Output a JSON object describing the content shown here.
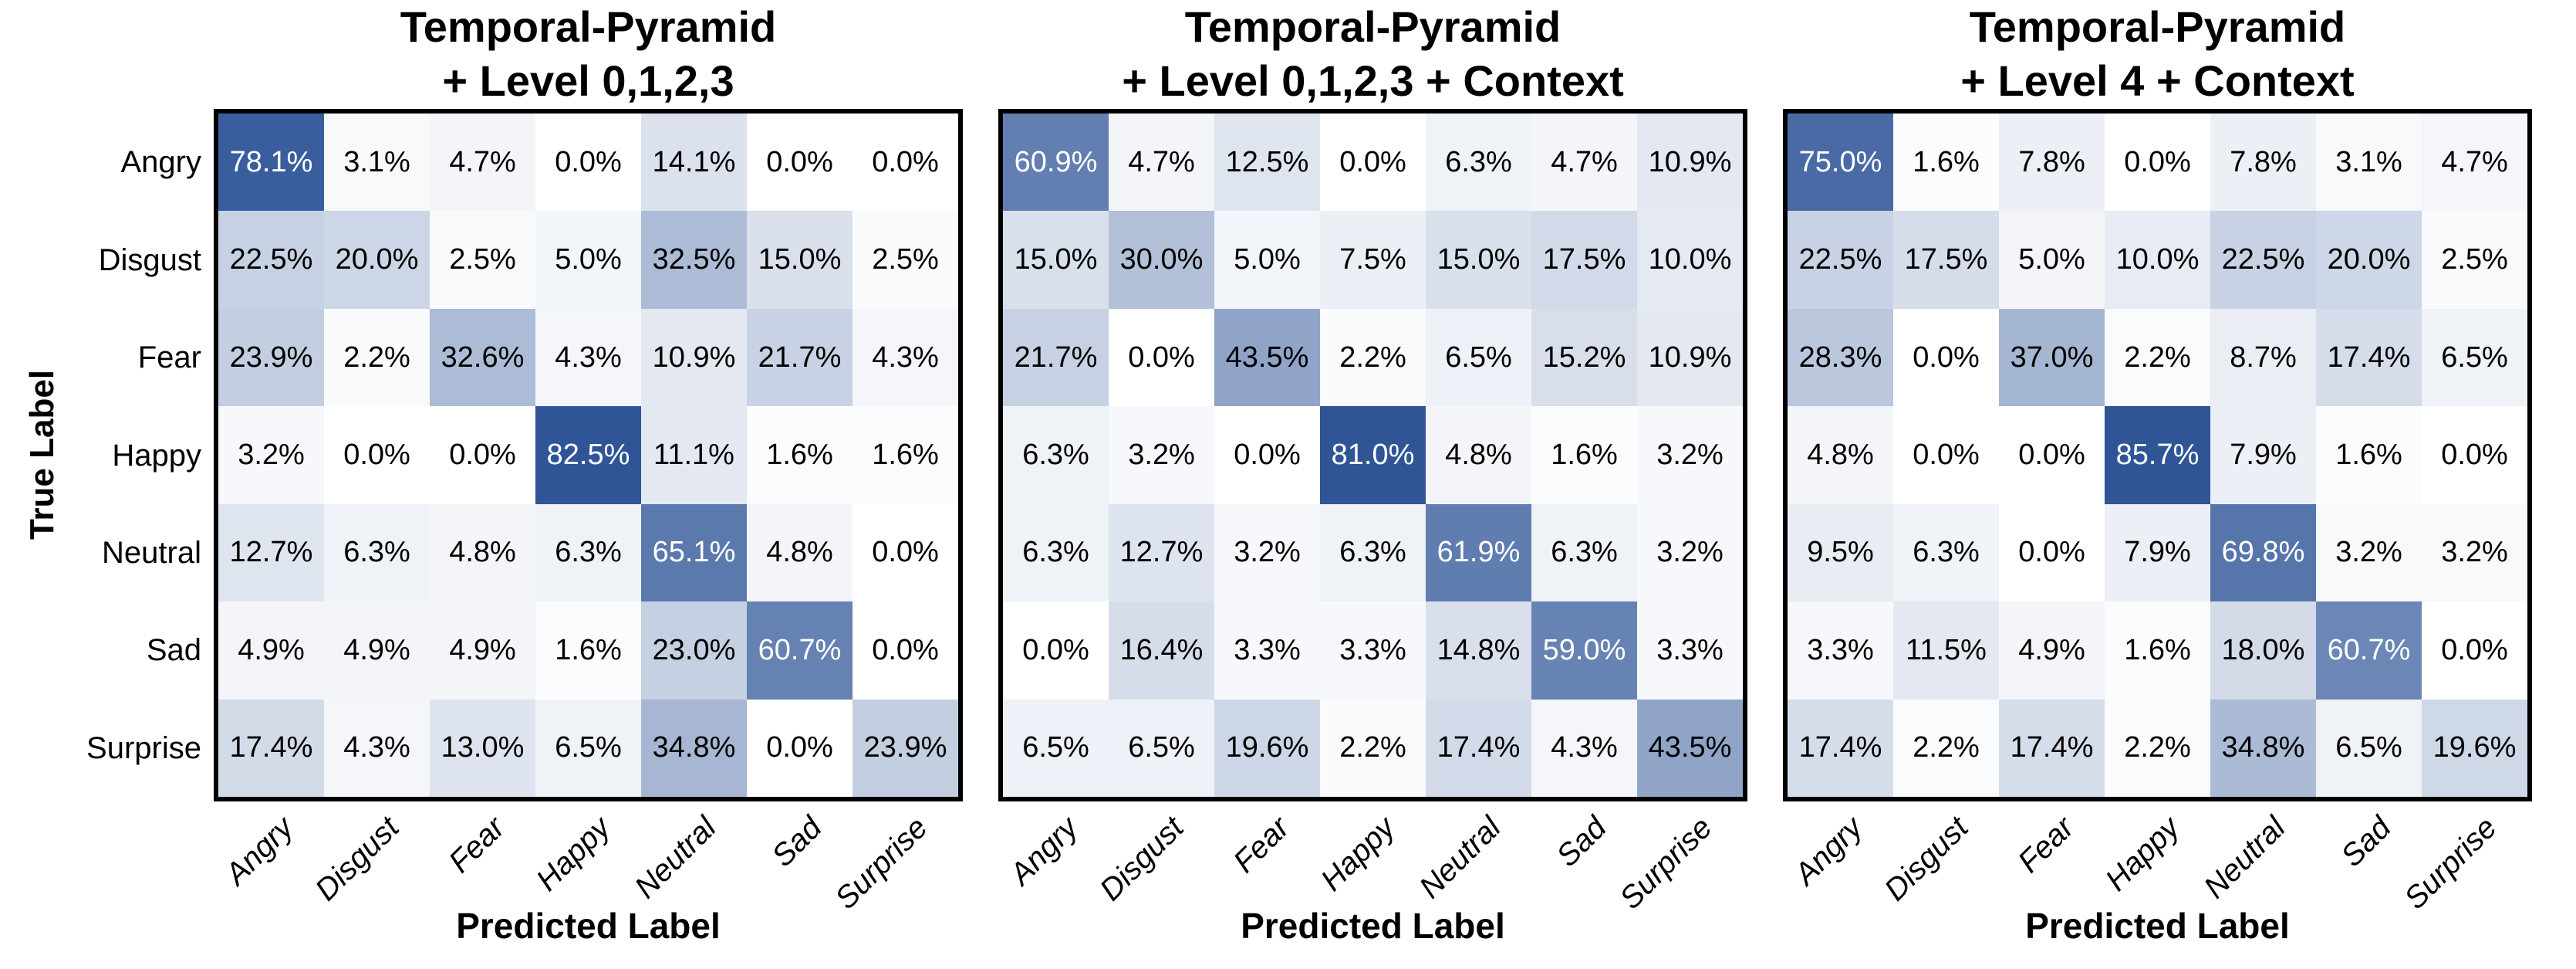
{
  "figure": {
    "ylabel": "True Label"
  },
  "colors": {
    "heat_min": "#FFFFFF",
    "heat_max": "#2F5597",
    "border": "#000000",
    "cell_text_dark": "#000000",
    "cell_text_light": "#FFFFFF"
  },
  "chart_data": [
    {
      "type": "heatmap",
      "title_lines": [
        "Temporal-Pyramid",
        "+ Level 0,1,2,3"
      ],
      "xlabel": "Predicted Label",
      "ylabel": "True Label",
      "x_categories": [
        "Angry",
        "Disgust",
        "Fear",
        "Happy",
        "Neutral",
        "Sad",
        "Surprise"
      ],
      "y_categories": [
        "Angry",
        "Disgust",
        "Fear",
        "Happy",
        "Neutral",
        "Sad",
        "Surprise"
      ],
      "values_percent": [
        [
          78.1,
          3.1,
          4.7,
          0.0,
          14.1,
          0.0,
          0.0
        ],
        [
          22.5,
          20.0,
          2.5,
          5.0,
          32.5,
          15.0,
          2.5
        ],
        [
          23.9,
          2.2,
          32.6,
          4.3,
          10.9,
          21.7,
          4.3
        ],
        [
          3.2,
          0.0,
          0.0,
          82.5,
          11.1,
          1.6,
          1.6
        ],
        [
          12.7,
          6.3,
          4.8,
          6.3,
          65.1,
          4.8,
          0.0
        ],
        [
          4.9,
          4.9,
          4.9,
          1.6,
          23.0,
          60.7,
          0.0
        ],
        [
          17.4,
          4.3,
          13.0,
          6.5,
          34.8,
          0.0,
          23.9
        ]
      ]
    },
    {
      "type": "heatmap",
      "title_lines": [
        "Temporal-Pyramid",
        "+ Level 0,1,2,3 + Context"
      ],
      "xlabel": "Predicted Label",
      "x_categories": [
        "Angry",
        "Disgust",
        "Fear",
        "Happy",
        "Neutral",
        "Sad",
        "Surprise"
      ],
      "y_categories": [
        "Angry",
        "Disgust",
        "Fear",
        "Happy",
        "Neutral",
        "Sad",
        "Surprise"
      ],
      "values_percent": [
        [
          60.9,
          4.7,
          12.5,
          0.0,
          6.3,
          4.7,
          10.9
        ],
        [
          15.0,
          30.0,
          5.0,
          7.5,
          15.0,
          17.5,
          10.0
        ],
        [
          21.7,
          0.0,
          43.5,
          2.2,
          6.5,
          15.2,
          10.9
        ],
        [
          6.3,
          3.2,
          0.0,
          81.0,
          4.8,
          1.6,
          3.2
        ],
        [
          6.3,
          12.7,
          3.2,
          6.3,
          61.9,
          6.3,
          3.2
        ],
        [
          0.0,
          16.4,
          3.3,
          3.3,
          14.8,
          59.0,
          3.3
        ],
        [
          6.5,
          6.5,
          19.6,
          2.2,
          17.4,
          4.3,
          43.5
        ]
      ]
    },
    {
      "type": "heatmap",
      "title_lines": [
        "Temporal-Pyramid",
        "+ Level 4 + Context"
      ],
      "xlabel": "Predicted Label",
      "x_categories": [
        "Angry",
        "Disgust",
        "Fear",
        "Happy",
        "Neutral",
        "Sad",
        "Surprise"
      ],
      "y_categories": [
        "Angry",
        "Disgust",
        "Fear",
        "Happy",
        "Neutral",
        "Sad",
        "Surprise"
      ],
      "values_percent": [
        [
          75.0,
          1.6,
          7.8,
          0.0,
          7.8,
          3.1,
          4.7
        ],
        [
          22.5,
          17.5,
          5.0,
          10.0,
          22.5,
          20.0,
          2.5
        ],
        [
          28.3,
          0.0,
          37.0,
          2.2,
          8.7,
          17.4,
          6.5
        ],
        [
          4.8,
          0.0,
          0.0,
          85.7,
          7.9,
          1.6,
          0.0
        ],
        [
          9.5,
          6.3,
          0.0,
          7.9,
          69.8,
          3.2,
          3.2
        ],
        [
          3.3,
          11.5,
          4.9,
          1.6,
          18.0,
          60.7,
          0.0
        ],
        [
          17.4,
          2.2,
          17.4,
          2.2,
          34.8,
          6.5,
          19.6
        ]
      ]
    }
  ]
}
